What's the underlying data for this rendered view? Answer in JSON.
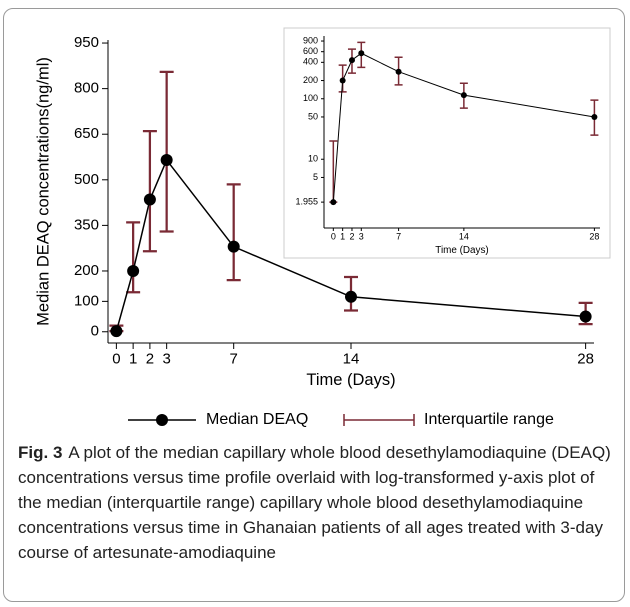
{
  "chart_data": [
    {
      "type": "line",
      "y_label": "Median DEAQ concentrations(ng/ml)",
      "x_label": "Time (Days)",
      "x": [
        0,
        1,
        2,
        3,
        7,
        14,
        28
      ],
      "xlim": [
        -0.5,
        28.5
      ],
      "xticks": [
        0,
        1,
        2,
        3,
        7,
        14,
        28
      ],
      "ylim": [
        -37,
        960
      ],
      "yticks": [
        0,
        100,
        200,
        350,
        500,
        650,
        800,
        950
      ],
      "legend": "bottom",
      "series": [
        {
          "name": "Median DEAQ",
          "color": "#000000",
          "values": [
            1.955,
            200,
            435,
            565,
            280,
            115,
            50
          ]
        },
        {
          "name": "Interquartile range",
          "color": "#7a2a35",
          "low": [
            1.955,
            130,
            265,
            330,
            170,
            70,
            25
          ],
          "high": [
            20,
            360,
            660,
            855,
            485,
            180,
            95
          ]
        }
      ]
    },
    {
      "type": "line",
      "x_label": "Time (Days)",
      "x": [
        0,
        1,
        2,
        3,
        7,
        14,
        28
      ],
      "xlim": [
        -1,
        28.6
      ],
      "xticks": [
        0,
        1,
        2,
        3,
        7,
        14,
        28
      ],
      "log_scale": true,
      "ylim": [
        0.73,
        1090
      ],
      "yticks": [
        1.955,
        5,
        10,
        50,
        100,
        200,
        400,
        600,
        900
      ],
      "series": [
        {
          "color": "#000000",
          "values": [
            1.955,
            200,
            435,
            565,
            280,
            115,
            50
          ]
        },
        {
          "color": "#7a2a35",
          "low": [
            1.955,
            130,
            265,
            330,
            170,
            70,
            25
          ],
          "high": [
            20,
            360,
            660,
            855,
            485,
            180,
            95
          ]
        }
      ]
    }
  ],
  "caption_label": "Fig. 3",
  "caption": "A plot of the median capillary whole blood desethylamodiaquine (DEAQ) concentrations versus time profile overlaid with log-transformed y-axis plot of the median (interquartile range) capillary whole blood desethylamodiaquine concentrations versus time in Ghanaian patients of all ages treated with 3-day course of artesunate-amodiaquine"
}
